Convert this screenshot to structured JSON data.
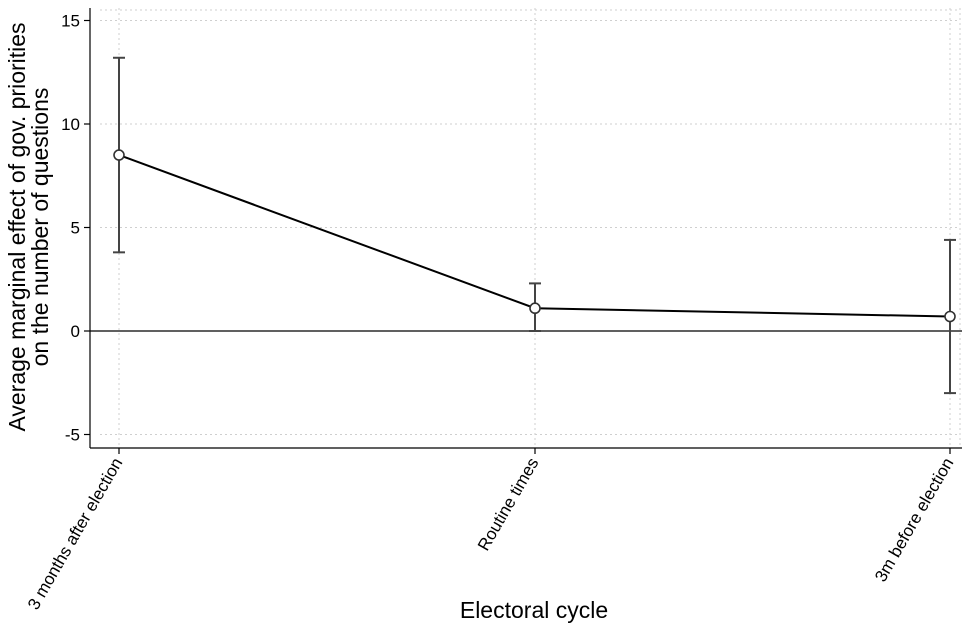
{
  "chart_data": {
    "type": "line",
    "xlabel": "Electoral cycle",
    "ylabel_lines": [
      "Average marginal effect of gov. priorities",
      "on the number of questions"
    ],
    "categories": [
      "3 months after election",
      "Routine times",
      "3m before election"
    ],
    "series": [
      {
        "values": [
          8.5,
          1.1,
          0.7
        ],
        "ci_low": [
          3.8,
          0.0,
          -3.0
        ],
        "ci_high": [
          13.2,
          2.3,
          4.4
        ]
      }
    ],
    "ylim": [
      -5,
      15
    ],
    "yticks": [
      -5,
      0,
      5,
      10,
      15
    ],
    "reference_line": 0,
    "grid": true,
    "colors": {
      "line": "#000000",
      "errorbar": "#444444",
      "grid": "#cfcfcf"
    }
  }
}
